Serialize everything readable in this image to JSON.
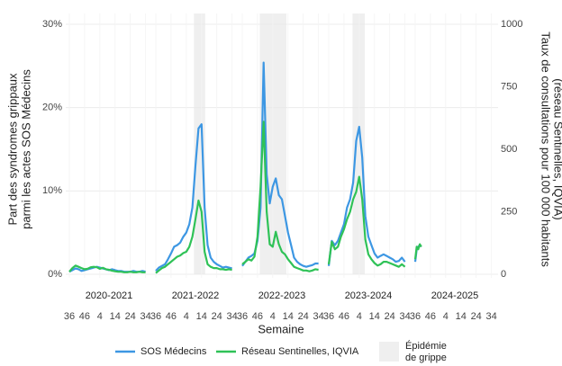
{
  "chart_data": {
    "type": "line",
    "x_label": "Semaine",
    "y_label": [
      "Part des syndromes grippaux",
      "parmi les actes SOS Médecins"
    ],
    "y2_label": [
      "Taux de consultations pour 100 000 habitants",
      "(réseau Sentinelles, IQVIA)"
    ],
    "ylim": [
      0,
      30
    ],
    "yticks": [
      {
        "value": 0,
        "label": "0%"
      },
      {
        "value": 10,
        "label": "10%"
      },
      {
        "value": 20,
        "label": "20%"
      },
      {
        "value": 30,
        "label": "30%"
      }
    ],
    "y2lim": [
      0,
      1000
    ],
    "y2ticks": [
      0,
      250,
      500,
      750,
      1000
    ],
    "xlim": [
      0,
      52
    ],
    "xticks": [
      {
        "value": 0,
        "label": "36"
      },
      {
        "value": 10,
        "label": "46"
      },
      {
        "value": 20,
        "label": "4"
      },
      {
        "value": 30,
        "label": "14"
      },
      {
        "value": 40,
        "label": "24"
      },
      {
        "value": 50,
        "label": "34"
      }
    ],
    "grid": true,
    "series": [
      {
        "name": "SOS Médecins",
        "color": "#3d97e3"
      },
      {
        "name": "Réseau Sentinelles, IQVIA",
        "color": "#2fc257",
        "axis": "y2"
      }
    ],
    "shade_legend": [
      "Épidémie",
      "de grippe"
    ],
    "shade_color": "#efefef",
    "panels": [
      {
        "label": "2020-2021",
        "x": [
          0,
          2,
          4,
          6,
          8,
          10,
          12,
          14,
          16,
          18,
          20,
          22,
          24,
          26,
          28,
          30,
          32,
          34,
          36,
          38,
          40,
          42,
          44,
          46,
          48,
          50
        ],
        "values": [
          [
            0.3,
            0.5,
            0.7,
            0.6,
            0.4,
            0.5,
            0.6,
            0.7,
            0.8,
            0.9,
            0.8,
            0.7,
            0.6,
            0.5,
            0.6,
            0.5,
            0.4,
            0.4,
            0.3,
            0.3,
            0.3,
            0.4,
            0.3,
            0.3,
            0.4,
            0.3
          ],
          [
            10,
            25,
            35,
            30,
            25,
            20,
            22,
            28,
            30,
            28,
            22,
            26,
            20,
            18,
            14,
            12,
            10,
            10,
            8,
            8,
            10,
            8,
            8,
            10,
            8,
            8
          ]
        ]
      },
      {
        "label": "2021-2022",
        "x": [
          0,
          2,
          4,
          6,
          8,
          10,
          12,
          14,
          16,
          18,
          20,
          22,
          24,
          26,
          28,
          30,
          32,
          34,
          36,
          38,
          40,
          42,
          44,
          46,
          48,
          50
        ],
        "epidemic": [
          25,
          32.4
        ],
        "values": [
          [
            0.4,
            0.8,
            1.0,
            1.2,
            1.8,
            2.5,
            3.3,
            3.5,
            3.8,
            4.5,
            5,
            6,
            8,
            13,
            17.5,
            18,
            8,
            3.5,
            2,
            1.5,
            1.2,
            1,
            0.8,
            0.9,
            0.8,
            0.7
          ],
          [
            5,
            15,
            25,
            30,
            40,
            50,
            60,
            70,
            75,
            85,
            90,
            110,
            150,
            220,
            295,
            250,
            90,
            40,
            30,
            25,
            25,
            20,
            20,
            18,
            20,
            18
          ]
        ]
      },
      {
        "label": "2022-2023",
        "x": [
          0,
          2,
          4,
          6,
          8,
          10,
          12,
          14,
          16,
          18,
          20,
          22,
          24,
          26,
          28,
          30,
          32,
          34,
          36,
          38,
          40,
          42,
          44,
          46,
          48,
          50
        ],
        "epidemic": [
          11.5,
          29
        ],
        "values": [
          [
            1.0,
            1.5,
            2,
            2.2,
            2.5,
            4,
            8,
            25.4,
            12,
            8.5,
            10.5,
            11.5,
            9.5,
            9,
            7,
            5,
            3.5,
            2,
            1.5,
            1.2,
            1,
            0.9,
            1,
            1.1,
            1.3,
            1.3
          ],
          [
            40,
            50,
            60,
            55,
            70,
            150,
            350,
            610,
            250,
            120,
            110,
            170,
            120,
            90,
            80,
            60,
            45,
            30,
            25,
            20,
            15,
            15,
            12,
            15,
            20,
            18
          ]
        ]
      },
      {
        "label": "2023-2024",
        "x": [
          0,
          2,
          4,
          6,
          8,
          10,
          12,
          14,
          16,
          18,
          20,
          22,
          24,
          26,
          28,
          30,
          32,
          34,
          36,
          38,
          40,
          42,
          44,
          46,
          48,
          50
        ],
        "epidemic": [
          15.6,
          23.7
        ],
        "values": [
          [
            1,
            4,
            3.5,
            4,
            5,
            6,
            8,
            9,
            11,
            16,
            17.7,
            14,
            7,
            4.5,
            3.5,
            2.5,
            2,
            2.2,
            2.4,
            2.2,
            2,
            1.8,
            1.5,
            1.6,
            2,
            1.5
          ],
          [
            40,
            130,
            100,
            110,
            150,
            180,
            220,
            250,
            300,
            330,
            390,
            300,
            140,
            80,
            60,
            45,
            35,
            40,
            50,
            50,
            45,
            40,
            35,
            30,
            40,
            30
          ]
        ]
      },
      {
        "label": "2024-2025",
        "x": [
          0,
          1,
          2,
          3,
          4
        ],
        "values": [
          [
            1.5,
            3,
            3.3,
            3.5,
            3.3
          ],
          [
            60,
            110,
            100,
            120,
            110
          ]
        ]
      }
    ]
  }
}
